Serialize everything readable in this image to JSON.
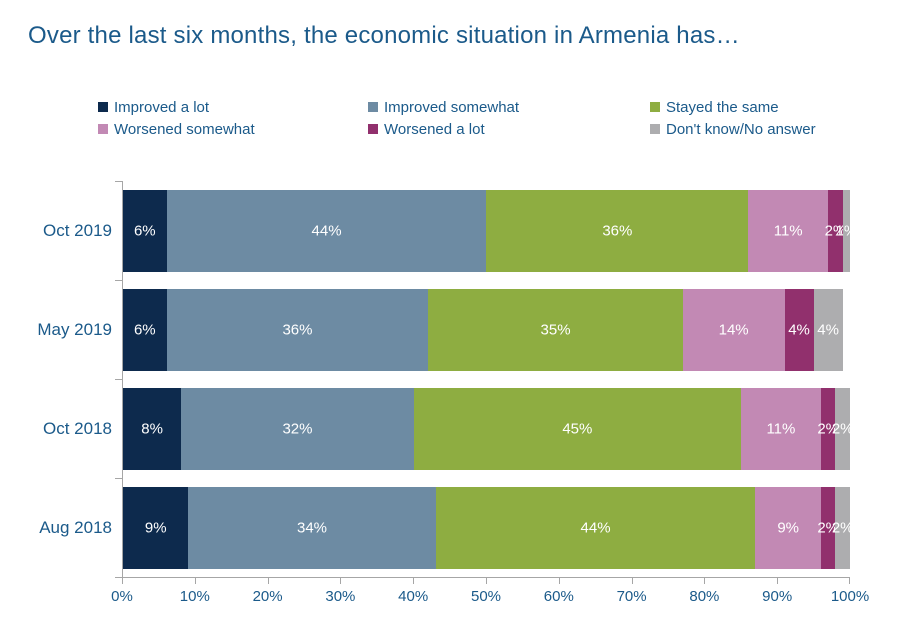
{
  "title": "Over the last six months, the economic situation in Armenia has…",
  "colors": {
    "title_text": "#1b5a8a",
    "axis_line": "#a6a6a6",
    "bar_value_text": "#ffffff"
  },
  "chart_data": {
    "type": "bar",
    "orientation": "horizontal",
    "stacked": true,
    "title": "Over the last six months, the economic situation in Armenia has…",
    "categories": [
      "Oct 2019",
      "May 2019",
      "Oct 2018",
      "Aug 2018"
    ],
    "series": [
      {
        "name": "Improved a lot",
        "color": "#0d2a4d",
        "values": [
          6,
          6,
          8,
          9
        ]
      },
      {
        "name": "Improved somewhat",
        "color": "#6d8ba3",
        "values": [
          44,
          36,
          32,
          34
        ]
      },
      {
        "name": "Stayed the same",
        "color": "#8ead41",
        "values": [
          36,
          35,
          45,
          44
        ]
      },
      {
        "name": "Worsened somewhat",
        "color": "#c289b4",
        "values": [
          11,
          14,
          11,
          9
        ]
      },
      {
        "name": "Worsened a lot",
        "color": "#91306d",
        "values": [
          2,
          4,
          2,
          2
        ]
      },
      {
        "name": "Don't know/No answer",
        "color": "#adadaf",
        "values": [
          1,
          4,
          2,
          2
        ]
      }
    ],
    "value_suffix": "%",
    "xlabel": "",
    "ylabel": "",
    "xlim": [
      0,
      100
    ],
    "x_ticks": [
      "0%",
      "10%",
      "20%",
      "30%",
      "40%",
      "50%",
      "60%",
      "70%",
      "80%",
      "90%",
      "100%"
    ],
    "grid": false,
    "legend_position": "top"
  }
}
